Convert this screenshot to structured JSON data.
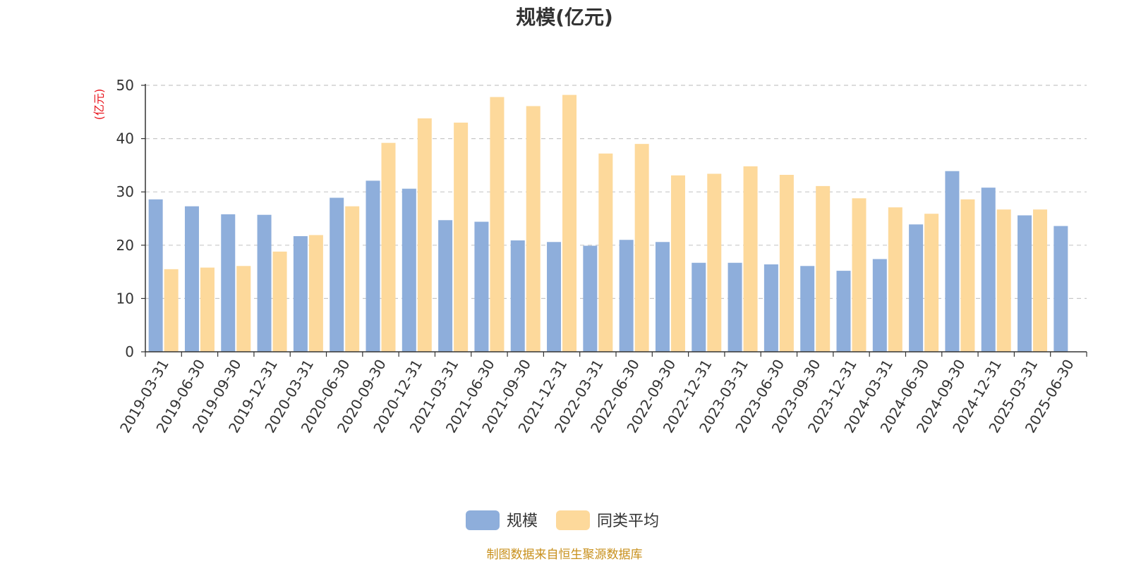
{
  "chart_data": {
    "type": "bar",
    "title": "规模(亿元)",
    "ylabel": "(亿元)",
    "ylim": [
      0,
      50
    ],
    "yticks": [
      0,
      10,
      20,
      30,
      40,
      50
    ],
    "grid": true,
    "legend_placement": "bottom-center",
    "categories": [
      "2019-03-31",
      "2019-06-30",
      "2019-09-30",
      "2019-12-31",
      "2020-03-31",
      "2020-06-30",
      "2020-09-30",
      "2020-12-31",
      "2021-03-31",
      "2021-06-30",
      "2021-09-30",
      "2021-12-31",
      "2022-03-31",
      "2022-06-30",
      "2022-09-30",
      "2022-12-31",
      "2023-03-31",
      "2023-06-30",
      "2023-09-30",
      "2023-12-31",
      "2024-03-31",
      "2024-06-30",
      "2024-09-30",
      "2024-12-31",
      "2025-03-31",
      "2025-06-30"
    ],
    "series": [
      {
        "name": "规模",
        "color": "#8eaedb",
        "values": [
          28.6,
          27.3,
          25.8,
          25.7,
          21.7,
          28.9,
          32.1,
          30.6,
          24.7,
          24.4,
          20.9,
          20.6,
          19.9,
          21.0,
          20.6,
          16.7,
          16.7,
          16.4,
          16.1,
          15.2,
          17.4,
          23.9,
          33.9,
          30.8,
          25.6,
          23.6
        ]
      },
      {
        "name": "同类平均",
        "color": "#fdd99b",
        "values": [
          15.5,
          15.8,
          16.1,
          18.8,
          21.9,
          27.3,
          39.2,
          43.8,
          43.0,
          47.8,
          46.1,
          48.2,
          37.2,
          39.0,
          33.1,
          33.4,
          34.8,
          33.2,
          31.1,
          28.8,
          27.1,
          25.9,
          28.6,
          26.7,
          26.7,
          null
        ]
      }
    ]
  },
  "footer": {
    "source": "制图数据来自恒生聚源数据库"
  }
}
